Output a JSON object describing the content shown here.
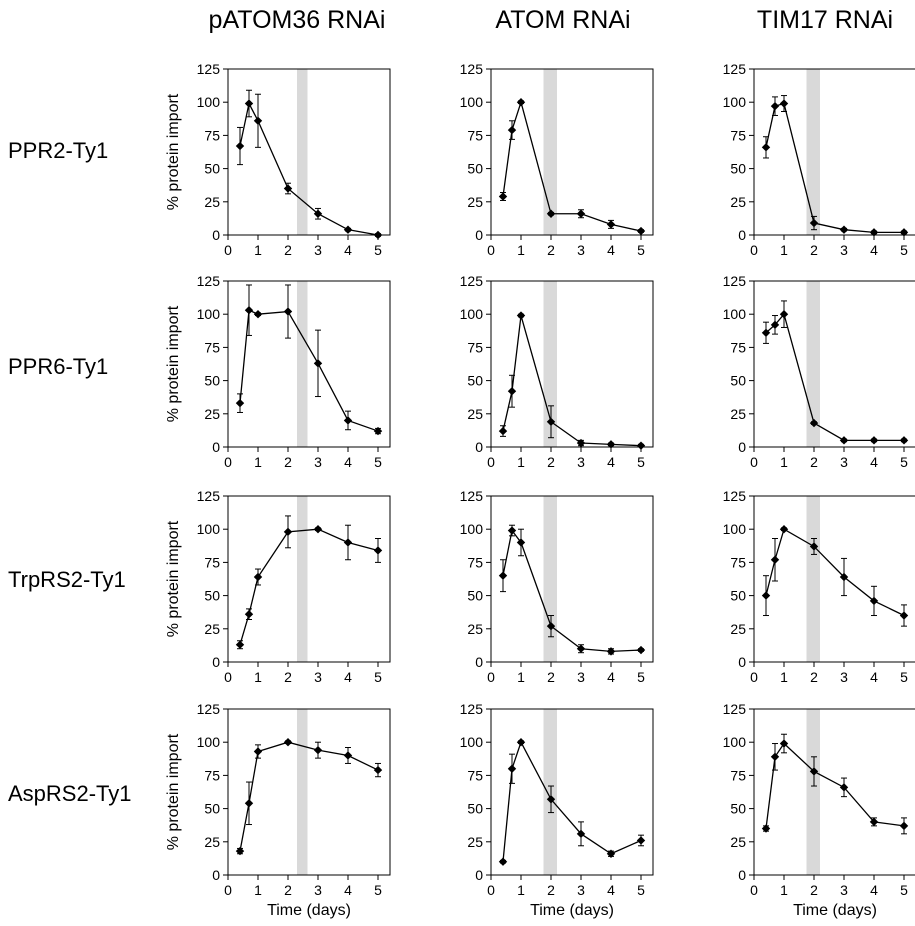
{
  "columns": [
    "pATOM36 RNAi",
    "ATOM RNAi",
    "TIM17 RNAi"
  ],
  "rows": [
    "PPR2-Ty1",
    "PPR6-Ty1",
    "TrpRS2-Ty1",
    "AspRS2-Ty1"
  ],
  "ylabel": "% protein import",
  "xlabel": "Time (days)",
  "xticks": [
    0,
    1,
    2,
    3,
    4,
    5
  ],
  "yticks": [
    0,
    25,
    50,
    75,
    100,
    125
  ],
  "colors": {
    "line": "#000000",
    "shade": "#d9d9d9"
  },
  "chart_data": [
    {
      "type": "line",
      "row": "PPR2-Ty1",
      "column": "pATOM36 RNAi",
      "xlim": [
        0,
        5.4
      ],
      "ylim": [
        0,
        125
      ],
      "shade": [
        2.3,
        2.65
      ],
      "x": [
        0.4,
        0.7,
        1,
        2,
        3,
        4,
        5
      ],
      "y": [
        67,
        99,
        86,
        35,
        16,
        4,
        0
      ],
      "err": [
        14,
        10,
        20,
        4,
        4,
        1,
        1
      ]
    },
    {
      "type": "line",
      "row": "PPR2-Ty1",
      "column": "ATOM RNAi",
      "xlim": [
        0,
        5.4
      ],
      "ylim": [
        0,
        125
      ],
      "shade": [
        1.75,
        2.2
      ],
      "x": [
        0.4,
        0.7,
        1,
        2,
        3,
        4,
        5
      ],
      "y": [
        29,
        79,
        100,
        16,
        16,
        8,
        3
      ],
      "err": [
        3,
        7,
        1,
        1,
        3,
        3,
        1
      ]
    },
    {
      "type": "line",
      "row": "PPR2-Ty1",
      "column": "TIM17 RNAi",
      "xlim": [
        0,
        5.4
      ],
      "ylim": [
        0,
        125
      ],
      "shade": [
        1.75,
        2.2
      ],
      "x": [
        0.4,
        0.7,
        1,
        2,
        3,
        4,
        5
      ],
      "y": [
        66,
        97,
        99,
        9,
        4,
        2,
        2
      ],
      "err": [
        8,
        7,
        6,
        5,
        1,
        1,
        1
      ]
    },
    {
      "type": "line",
      "row": "PPR6-Ty1",
      "column": "pATOM36 RNAi",
      "xlim": [
        0,
        5.4
      ],
      "ylim": [
        0,
        125
      ],
      "shade": [
        2.3,
        2.65
      ],
      "x": [
        0.4,
        0.7,
        1,
        2,
        3,
        4,
        5
      ],
      "y": [
        33,
        103,
        100,
        102,
        63,
        20,
        12
      ],
      "err": [
        7,
        19,
        1,
        20,
        25,
        7,
        2
      ]
    },
    {
      "type": "line",
      "row": "PPR6-Ty1",
      "column": "ATOM RNAi",
      "xlim": [
        0,
        5.4
      ],
      "ylim": [
        0,
        125
      ],
      "shade": [
        1.75,
        2.2
      ],
      "x": [
        0.4,
        0.7,
        1,
        2,
        3,
        4,
        5
      ],
      "y": [
        12,
        42,
        99,
        19,
        3,
        2,
        1
      ],
      "err": [
        4,
        12,
        1,
        12,
        2,
        1,
        1
      ]
    },
    {
      "type": "line",
      "row": "PPR6-Ty1",
      "column": "TIM17 RNAi",
      "xlim": [
        0,
        5.4
      ],
      "ylim": [
        0,
        125
      ],
      "shade": [
        1.75,
        2.2
      ],
      "x": [
        0.4,
        0.7,
        1,
        2,
        3,
        4,
        5
      ],
      "y": [
        86,
        92,
        100,
        18,
        5,
        5,
        5
      ],
      "err": [
        8,
        7,
        10,
        1,
        1,
        1,
        1
      ]
    },
    {
      "type": "line",
      "row": "TrpRS2-Ty1",
      "column": "pATOM36 RNAi",
      "xlim": [
        0,
        5.4
      ],
      "ylim": [
        0,
        125
      ],
      "shade": [
        2.3,
        2.65
      ],
      "x": [
        0.4,
        0.7,
        1,
        2,
        3,
        4,
        5
      ],
      "y": [
        13,
        36,
        64,
        98,
        100,
        90,
        84
      ],
      "err": [
        3,
        4,
        6,
        12,
        1,
        13,
        9
      ]
    },
    {
      "type": "line",
      "row": "TrpRS2-Ty1",
      "column": "ATOM RNAi",
      "xlim": [
        0,
        5.4
      ],
      "ylim": [
        0,
        125
      ],
      "shade": [
        1.75,
        2.2
      ],
      "x": [
        0.4,
        0.7,
        1,
        2,
        3,
        4,
        5
      ],
      "y": [
        65,
        99,
        90,
        27,
        10,
        8,
        9
      ],
      "err": [
        12,
        4,
        10,
        8,
        3,
        2,
        1
      ]
    },
    {
      "type": "line",
      "row": "TrpRS2-Ty1",
      "column": "TIM17 RNAi",
      "xlim": [
        0,
        5.4
      ],
      "ylim": [
        0,
        125
      ],
      "shade": [
        1.75,
        2.2
      ],
      "x": [
        0.4,
        0.7,
        1,
        2,
        3,
        4,
        5
      ],
      "y": [
        50,
        77,
        100,
        87,
        64,
        46,
        35
      ],
      "err": [
        15,
        16,
        1,
        6,
        14,
        11,
        8
      ]
    },
    {
      "type": "line",
      "row": "AspRS2-Ty1",
      "column": "pATOM36 RNAi",
      "xlim": [
        0,
        5.4
      ],
      "ylim": [
        0,
        125
      ],
      "shade": [
        2.3,
        2.65
      ],
      "x": [
        0.4,
        0.7,
        1,
        2,
        3,
        4,
        5
      ],
      "y": [
        18,
        54,
        93,
        100,
        94,
        90,
        79
      ],
      "err": [
        2,
        16,
        5,
        1,
        6,
        6,
        5
      ]
    },
    {
      "type": "line",
      "row": "AspRS2-Ty1",
      "column": "ATOM RNAi",
      "xlim": [
        0,
        5.4
      ],
      "ylim": [
        0,
        125
      ],
      "shade": [
        1.75,
        2.2
      ],
      "x": [
        0.4,
        0.7,
        1,
        2,
        3,
        4,
        5
      ],
      "y": [
        10,
        80,
        100,
        57,
        31,
        16,
        26
      ],
      "err": [
        1,
        11,
        1,
        10,
        9,
        2,
        4
      ]
    },
    {
      "type": "line",
      "row": "AspRS2-Ty1",
      "column": "TIM17 RNAi",
      "xlim": [
        0,
        5.4
      ],
      "ylim": [
        0,
        125
      ],
      "shade": [
        1.75,
        2.2
      ],
      "x": [
        0.4,
        0.7,
        1,
        2,
        3,
        4,
        5
      ],
      "y": [
        35,
        89,
        99,
        78,
        66,
        40,
        37
      ],
      "err": [
        2,
        10,
        7,
        11,
        7,
        3,
        6
      ]
    }
  ]
}
